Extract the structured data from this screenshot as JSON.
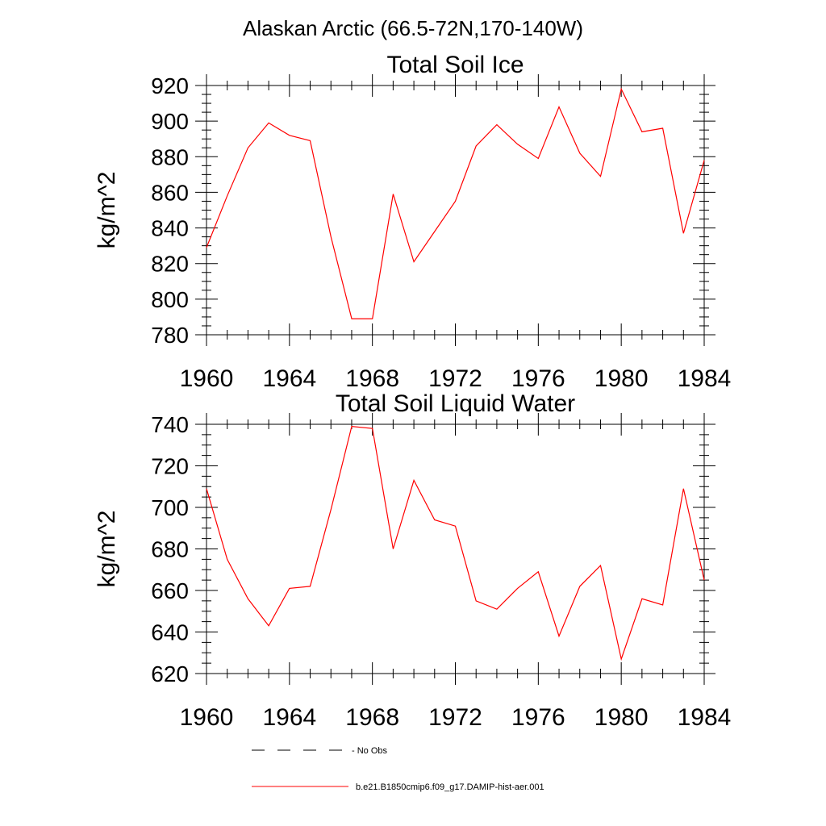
{
  "figure": {
    "suptitle": "Alaskan Arctic (66.5-72N,170-140W)"
  },
  "legend": {
    "entries": [
      {
        "label": "No Obs",
        "style": "dashed",
        "color": "#000000"
      },
      {
        "label": "b.e21.B1850cmip6.f09_g17.DAMIP-hist-aer.001",
        "style": "solid",
        "color": "#ff0000"
      }
    ]
  },
  "chart_data": [
    {
      "type": "line",
      "title": "Total Soil Ice",
      "xlabel": "",
      "ylabel": "kg/m^2",
      "xlim": [
        1960,
        1984
      ],
      "ylim": [
        780,
        920
      ],
      "xticks": [
        1960,
        1964,
        1968,
        1972,
        1976,
        1980,
        1984
      ],
      "yticks": [
        780,
        800,
        820,
        840,
        860,
        880,
        900,
        920
      ],
      "x": [
        1960,
        1961,
        1962,
        1963,
        1964,
        1965,
        1966,
        1967,
        1968,
        1969,
        1970,
        1971,
        1972,
        1973,
        1974,
        1975,
        1976,
        1977,
        1978,
        1979,
        1980,
        1981,
        1982,
        1983,
        1984
      ],
      "series": [
        {
          "name": "b.e21.B1850cmip6.f09_g17.DAMIP-hist-aer.001",
          "color": "#ff0000",
          "values": [
            829,
            858,
            885,
            899,
            892,
            889,
            835,
            789,
            789,
            859,
            821,
            838,
            855,
            886,
            898,
            887,
            879,
            908,
            882,
            869,
            918,
            894,
            896,
            837,
            878
          ]
        }
      ]
    },
    {
      "type": "line",
      "title": "Total Soil Liquid Water",
      "xlabel": "",
      "ylabel": "kg/m^2",
      "xlim": [
        1960,
        1984
      ],
      "ylim": [
        620,
        740
      ],
      "xticks": [
        1960,
        1964,
        1968,
        1972,
        1976,
        1980,
        1984
      ],
      "yticks": [
        620,
        640,
        660,
        680,
        700,
        720,
        740
      ],
      "x": [
        1960,
        1961,
        1962,
        1963,
        1964,
        1965,
        1966,
        1967,
        1968,
        1969,
        1970,
        1971,
        1972,
        1973,
        1974,
        1975,
        1976,
        1977,
        1978,
        1979,
        1980,
        1981,
        1982,
        1983,
        1984
      ],
      "series": [
        {
          "name": "b.e21.B1850cmip6.f09_g17.DAMIP-hist-aer.001",
          "color": "#ff0000",
          "values": [
            709,
            675,
            656,
            643,
            661,
            662,
            699,
            739,
            738,
            680,
            713,
            694,
            691,
            655,
            651,
            661,
            669,
            638,
            662,
            672,
            627,
            656,
            653,
            709,
            665
          ]
        }
      ]
    }
  ]
}
